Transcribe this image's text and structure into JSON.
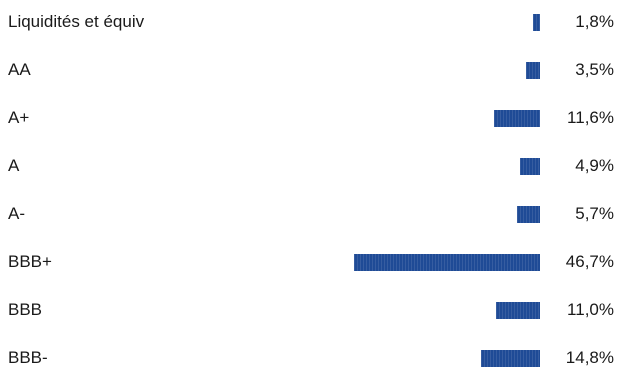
{
  "chart_data": {
    "type": "bar",
    "orientation": "horizontal",
    "categories": [
      "Liquidités et équiv",
      "AA",
      "A+",
      "A",
      "A-",
      "BBB+",
      "BBB",
      "BBB-"
    ],
    "values": [
      1.8,
      3.5,
      11.6,
      4.9,
      5.7,
      46.7,
      11.0,
      14.8
    ],
    "value_labels": [
      "1,8%",
      "3,5%",
      "11,6%",
      "4,9%",
      "5,7%",
      "46,7%",
      "11,0%",
      "14,8%"
    ],
    "bar_color": "#1f4b96",
    "unit": "%",
    "xlim": [
      0,
      46.7
    ],
    "grid": false,
    "legend": "none"
  }
}
